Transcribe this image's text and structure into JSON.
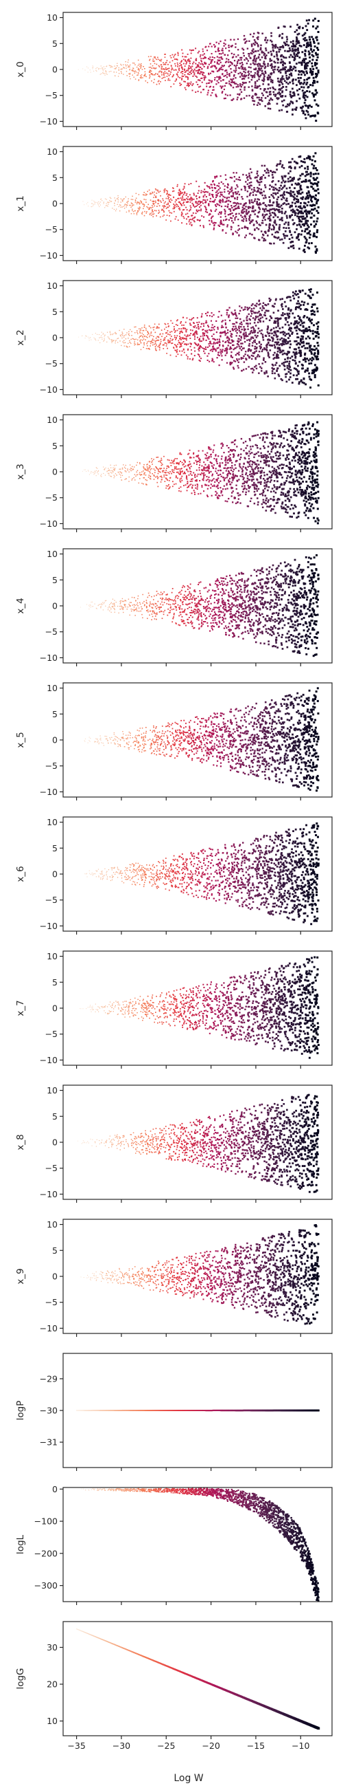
{
  "chart_data": {
    "type": "scatter",
    "figure": "stacked scatter panels sharing x axis",
    "xlabel": "Log W",
    "xlim": [
      -36.5,
      -6.5
    ],
    "xticks": [
      -35,
      -30,
      -25,
      -20,
      -15,
      -10
    ],
    "colormap": [
      "#faebdd",
      "#f6b48f",
      "#f37651",
      "#e13342",
      "#ad1759",
      "#701f57",
      "#35193e",
      "#03051a"
    ],
    "color_encoding": "x value (lighter = more negative Log W)",
    "x_range": [
      -35,
      -8
    ],
    "panels": [
      {
        "ylabel": "x_0",
        "kind": "spread",
        "ylim": [
          -11,
          11
        ],
        "yticks": [
          -10,
          -5,
          0,
          5,
          10
        ],
        "spread_at_x": [
          [
            -35,
            0.3
          ],
          [
            -30,
            1.6
          ],
          [
            -25,
            3.2
          ],
          [
            -20,
            5.0
          ],
          [
            -15,
            7.0
          ],
          [
            -8,
            10.0
          ]
        ]
      },
      {
        "ylabel": "x_1",
        "kind": "spread",
        "ylim": [
          -11,
          11
        ],
        "yticks": [
          -10,
          -5,
          0,
          5,
          10
        ],
        "spread_at_x": [
          [
            -35,
            0.3
          ],
          [
            -30,
            1.6
          ],
          [
            -25,
            3.2
          ],
          [
            -20,
            5.0
          ],
          [
            -15,
            7.0
          ],
          [
            -8,
            10.0
          ]
        ]
      },
      {
        "ylabel": "x_2",
        "kind": "spread",
        "ylim": [
          -11,
          11
        ],
        "yticks": [
          -10,
          -5,
          0,
          5,
          10
        ],
        "spread_at_x": [
          [
            -35,
            0.3
          ],
          [
            -30,
            1.6
          ],
          [
            -25,
            3.2
          ],
          [
            -20,
            5.0
          ],
          [
            -15,
            7.0
          ],
          [
            -8,
            10.0
          ]
        ]
      },
      {
        "ylabel": "x_3",
        "kind": "spread",
        "ylim": [
          -11,
          11
        ],
        "yticks": [
          -10,
          -5,
          0,
          5,
          10
        ],
        "spread_at_x": [
          [
            -35,
            0.3
          ],
          [
            -30,
            1.6
          ],
          [
            -25,
            3.2
          ],
          [
            -20,
            5.0
          ],
          [
            -15,
            7.0
          ],
          [
            -8,
            10.0
          ]
        ]
      },
      {
        "ylabel": "x_4",
        "kind": "spread",
        "ylim": [
          -11,
          11
        ],
        "yticks": [
          -10,
          -5,
          0,
          5,
          10
        ],
        "spread_at_x": [
          [
            -35,
            0.3
          ],
          [
            -30,
            1.6
          ],
          [
            -25,
            3.2
          ],
          [
            -20,
            5.0
          ],
          [
            -15,
            7.0
          ],
          [
            -8,
            10.0
          ]
        ]
      },
      {
        "ylabel": "x_5",
        "kind": "spread",
        "ylim": [
          -11,
          11
        ],
        "yticks": [
          -10,
          -5,
          0,
          5,
          10
        ],
        "spread_at_x": [
          [
            -35,
            0.3
          ],
          [
            -30,
            1.6
          ],
          [
            -25,
            3.2
          ],
          [
            -20,
            5.0
          ],
          [
            -15,
            7.0
          ],
          [
            -8,
            10.0
          ]
        ]
      },
      {
        "ylabel": "x_6",
        "kind": "spread",
        "ylim": [
          -11,
          11
        ],
        "yticks": [
          -10,
          -5,
          0,
          5,
          10
        ],
        "spread_at_x": [
          [
            -35,
            0.3
          ],
          [
            -30,
            1.6
          ],
          [
            -25,
            3.2
          ],
          [
            -20,
            5.0
          ],
          [
            -15,
            7.0
          ],
          [
            -8,
            10.0
          ]
        ]
      },
      {
        "ylabel": "x_7",
        "kind": "spread",
        "ylim": [
          -11,
          11
        ],
        "yticks": [
          -10,
          -5,
          0,
          5,
          10
        ],
        "spread_at_x": [
          [
            -35,
            0.3
          ],
          [
            -30,
            1.6
          ],
          [
            -25,
            3.2
          ],
          [
            -20,
            5.0
          ],
          [
            -15,
            7.0
          ],
          [
            -8,
            10.0
          ]
        ]
      },
      {
        "ylabel": "x_8",
        "kind": "spread",
        "ylim": [
          -11,
          11
        ],
        "yticks": [
          -10,
          -5,
          0,
          5,
          10
        ],
        "spread_at_x": [
          [
            -35,
            0.3
          ],
          [
            -30,
            1.6
          ],
          [
            -25,
            3.2
          ],
          [
            -20,
            5.0
          ],
          [
            -15,
            7.0
          ],
          [
            -8,
            10.0
          ]
        ]
      },
      {
        "ylabel": "x_9",
        "kind": "spread",
        "ylim": [
          -11,
          11
        ],
        "yticks": [
          -10,
          -5,
          0,
          5,
          10
        ],
        "spread_at_x": [
          [
            -35,
            0.3
          ],
          [
            -30,
            1.6
          ],
          [
            -25,
            3.2
          ],
          [
            -20,
            5.0
          ],
          [
            -15,
            7.0
          ],
          [
            -8,
            10.0
          ]
        ]
      },
      {
        "ylabel": "logP",
        "kind": "constant",
        "ylim": [
          -31.8,
          -28.2
        ],
        "yticks": [
          -29,
          -30,
          -31
        ],
        "value": -30
      },
      {
        "ylabel": "logL",
        "kind": "curve",
        "ylim": [
          -350,
          5
        ],
        "yticks": [
          0,
          -100,
          -200,
          -300
        ],
        "points": [
          [
            -35,
            -1
          ],
          [
            -30,
            -2
          ],
          [
            -25,
            -4
          ],
          [
            -20,
            -10
          ],
          [
            -17,
            -25
          ],
          [
            -15,
            -45
          ],
          [
            -13,
            -80
          ],
          [
            -11,
            -130
          ],
          [
            -10,
            -170
          ],
          [
            -9,
            -230
          ],
          [
            -8.2,
            -320
          ]
        ],
        "band_at_x": [
          [
            -35,
            2
          ],
          [
            -25,
            6
          ],
          [
            -20,
            12
          ],
          [
            -15,
            30
          ],
          [
            -10,
            45
          ],
          [
            -8.2,
            30
          ]
        ]
      },
      {
        "ylabel": "logG",
        "kind": "line",
        "ylim": [
          6,
          37
        ],
        "yticks": [
          10,
          20,
          30
        ],
        "points": [
          [
            -35,
            35
          ],
          [
            -8,
            8
          ]
        ]
      }
    ]
  }
}
